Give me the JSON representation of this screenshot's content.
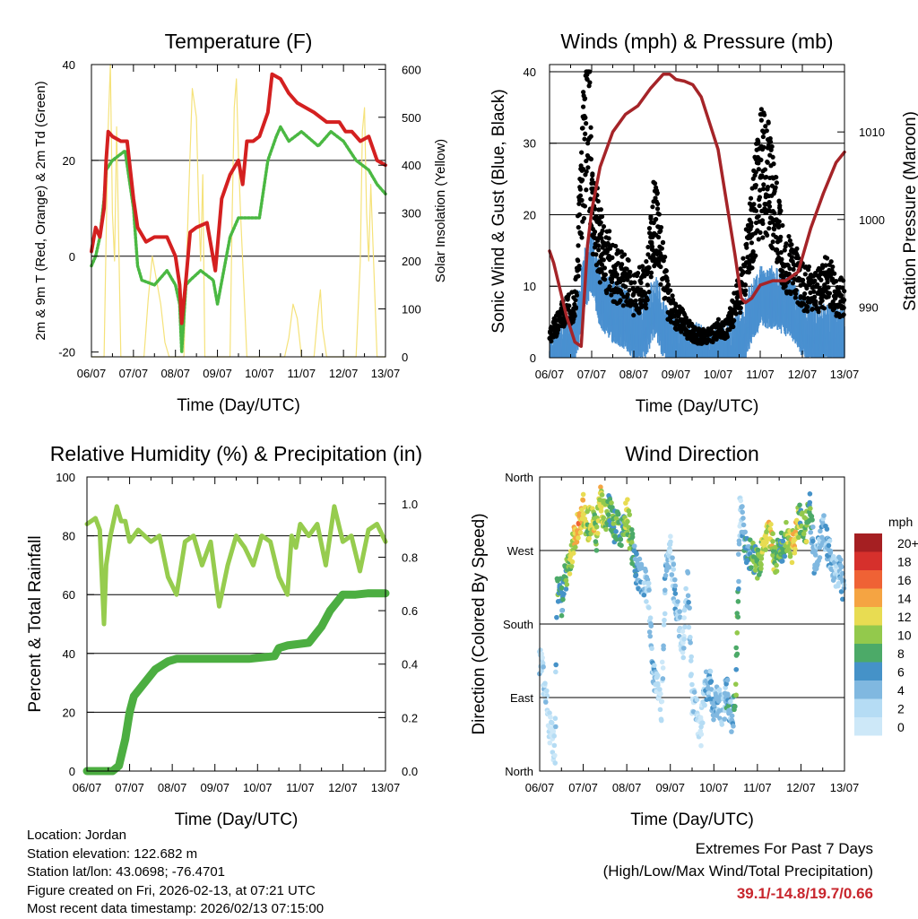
{
  "chart_data": [
    {
      "type": "line",
      "title": "Temperature (F)",
      "xlabel": "Time (Day/UTC)",
      "ylabel": "2m & 9m T (Red, Orange) & 2m Td (Green)",
      "y2label": "Solar Insolation (Yellow)",
      "x_ticks": [
        "06/07",
        "07/07",
        "08/07",
        "09/07",
        "10/07",
        "11/07",
        "12/07",
        "13/07"
      ],
      "xlim": [
        0,
        7
      ],
      "ylim": [
        -21,
        40
      ],
      "y_ticks": [
        -20,
        0,
        20,
        40
      ],
      "y2lim": [
        0,
        610
      ],
      "y2_ticks": [
        0,
        100,
        200,
        300,
        400,
        500,
        600
      ],
      "grid_y": [
        0,
        20,
        40
      ],
      "series": [
        {
          "name": "2m T",
          "color": "#d42020",
          "x": [
            0,
            0.1,
            0.2,
            0.3,
            0.35,
            0.4,
            0.5,
            0.7,
            0.85,
            1.0,
            1.1,
            1.3,
            1.5,
            1.8,
            2.0,
            2.1,
            2.15,
            2.25,
            2.35,
            2.5,
            2.75,
            2.95,
            3.0,
            3.1,
            3.3,
            3.5,
            3.6,
            3.7,
            3.85,
            4.0,
            4.2,
            4.3,
            4.5,
            4.7,
            4.9,
            5.3,
            5.6,
            5.9,
            6.05,
            6.2,
            6.4,
            6.6,
            6.8,
            7.0
          ],
          "values": [
            1,
            6,
            4,
            10,
            20,
            26,
            25,
            24,
            24,
            12,
            6,
            3,
            4,
            4,
            0,
            -6,
            -14,
            -5,
            5,
            6,
            7,
            -3,
            2,
            12,
            17,
            20,
            15,
            24,
            24,
            25,
            30,
            38,
            37,
            34,
            32,
            30,
            28,
            28,
            26,
            26,
            24,
            25,
            20,
            19
          ]
        },
        {
          "name": "2m Td",
          "color": "#4ab842",
          "x": [
            0,
            0.1,
            0.2,
            0.3,
            0.35,
            0.5,
            0.8,
            1.0,
            1.1,
            1.2,
            1.5,
            1.8,
            2.0,
            2.1,
            2.15,
            2.25,
            2.35,
            2.6,
            2.9,
            3.0,
            3.3,
            3.5,
            3.7,
            4.0,
            4.2,
            4.4,
            4.5,
            4.7,
            5.0,
            5.4,
            5.7,
            6.0,
            6.3,
            6.6,
            6.8,
            7.0
          ],
          "values": [
            -2,
            0,
            4,
            12,
            18,
            20,
            22,
            10,
            -2,
            -5,
            -6,
            -3,
            -6,
            -10,
            -20,
            -6,
            -5,
            -3,
            -5,
            -10,
            4,
            8,
            8,
            8,
            20,
            25,
            27,
            24,
            26,
            23,
            26,
            24,
            20,
            18,
            15,
            13
          ]
        },
        {
          "name": "Solar Insolation",
          "color": "#f5e27a",
          "axis": "y2",
          "x": [
            0,
            0.3,
            0.35,
            0.4,
            0.45,
            0.5,
            0.55,
            0.6,
            0.7,
            1.25,
            1.35,
            1.45,
            1.55,
            1.65,
            1.75,
            1.85,
            2.2,
            2.3,
            2.4,
            2.5,
            2.55,
            2.6,
            2.65,
            2.7,
            3.3,
            3.35,
            3.4,
            3.45,
            3.5,
            3.55,
            3.6,
            3.7,
            4.6,
            4.7,
            4.8,
            4.9,
            5.0,
            5.3,
            5.4,
            5.45,
            5.5,
            5.6,
            6.3,
            6.4,
            6.45,
            6.5,
            6.55,
            6.6,
            6.65,
            6.8,
            7.0
          ],
          "values": [
            0,
            0,
            250,
            480,
            610,
            300,
            200,
            480,
            0,
            0,
            120,
            210,
            160,
            110,
            30,
            0,
            0,
            300,
            560,
            500,
            320,
            200,
            380,
            0,
            0,
            300,
            520,
            580,
            420,
            300,
            200,
            0,
            0,
            40,
            110,
            80,
            0,
            0,
            100,
            140,
            60,
            0,
            0,
            200,
            470,
            520,
            300,
            200,
            360,
            0,
            0
          ]
        }
      ]
    },
    {
      "type": "scatter",
      "title": "Winds (mph) & Pressure (mb)",
      "xlabel": "Time (Day/UTC)",
      "ylabel": "Sonic Wind & Gust (Blue, Black)",
      "y2label": "Station Pressure (Maroon)",
      "x_ticks": [
        "06/07",
        "07/07",
        "08/07",
        "09/07",
        "10/07",
        "11/07",
        "12/07",
        "13/07"
      ],
      "xlim": [
        0,
        7
      ],
      "ylim": [
        0,
        41
      ],
      "y_ticks": [
        0,
        10,
        20,
        30,
        40
      ],
      "y2lim": [
        984.2,
        1017.7
      ],
      "y2_ticks": [
        990,
        1000,
        1010
      ],
      "grid_y": [
        10,
        20,
        30,
        40
      ],
      "series": [
        {
          "name": "Sonic Wind",
          "color": "#4a90d0",
          "x": [
            0,
            0.3,
            0.6,
            0.8,
            1.0,
            1.2,
            1.5,
            1.8,
            2.0,
            2.3,
            2.5,
            2.8,
            3.0,
            3.3,
            3.5,
            3.8,
            4.0,
            4.2,
            4.4,
            4.6,
            4.8,
            5.0,
            5.3,
            5.6,
            5.8,
            6.0,
            6.3,
            6.6,
            6.8,
            7.0
          ],
          "values": [
            1,
            3,
            4,
            12,
            15,
            10,
            8,
            7,
            5,
            6,
            9,
            4,
            3,
            2,
            2,
            1,
            2,
            2,
            3,
            5,
            8,
            10,
            10,
            9,
            8,
            6,
            5,
            5,
            4,
            4
          ]
        },
        {
          "name": "Gust",
          "color": "#000000",
          "x": [
            0,
            0.3,
            0.6,
            0.8,
            0.9,
            1.0,
            1.2,
            1.5,
            1.8,
            2.0,
            2.3,
            2.5,
            2.8,
            3.0,
            3.3,
            3.5,
            3.8,
            4.0,
            4.2,
            4.4,
            4.6,
            4.8,
            5.0,
            5.2,
            5.4,
            5.6,
            5.8,
            6.0,
            6.3,
            6.6,
            6.8,
            7.0
          ],
          "values": [
            3,
            6,
            8,
            28,
            39,
            22,
            16,
            12,
            11,
            9,
            10,
            20,
            8,
            6,
            4,
            3,
            3,
            4,
            4,
            7,
            11,
            18,
            26,
            25,
            18,
            13,
            12,
            10,
            9,
            11,
            9,
            8
          ]
        },
        {
          "name": "Station Pressure",
          "color": "#a52428",
          "axis": "y2",
          "x": [
            0,
            0.1,
            0.2,
            0.4,
            0.6,
            0.75,
            0.9,
            1.0,
            1.2,
            1.5,
            1.8,
            2.1,
            2.4,
            2.7,
            2.85,
            3.0,
            3.2,
            3.4,
            3.6,
            3.8,
            4.0,
            4.2,
            4.4,
            4.55,
            4.65,
            4.8,
            5.0,
            5.3,
            5.6,
            5.9,
            6.2,
            6.5,
            6.8,
            7.0
          ],
          "values": [
            996.4,
            995,
            993,
            989,
            986,
            985.5,
            997,
            1001,
            1006,
            1010,
            1012,
            1013,
            1015,
            1016.6,
            1016.6,
            1016,
            1015.8,
            1015.4,
            1014,
            1011,
            1008,
            1002,
            996,
            991,
            990.5,
            991,
            992.5,
            993,
            993,
            994,
            999,
            1003,
            1006.5,
            1007.7
          ]
        }
      ]
    },
    {
      "type": "line",
      "title": "Relative Humidity (%) & Precipitation (in)",
      "xlabel": "Time (Day/UTC)",
      "ylabel": "Percent & Total Rainfall",
      "x_ticks": [
        "06/07",
        "07/07",
        "08/07",
        "09/07",
        "10/07",
        "11/07",
        "12/07",
        "13/07"
      ],
      "xlim": [
        0,
        7
      ],
      "ylim": [
        0,
        100
      ],
      "y_ticks": [
        0,
        20,
        40,
        60,
        80,
        100
      ],
      "y2lim": [
        0,
        1.1
      ],
      "y2_ticks": [
        0.0,
        0.2,
        0.4,
        0.6,
        0.8,
        1.0
      ],
      "grid_y": [
        20,
        40,
        60,
        80
      ],
      "series": [
        {
          "name": "Relative Humidity",
          "color": "#96cc4e",
          "x": [
            0,
            0.2,
            0.3,
            0.4,
            0.45,
            0.55,
            0.7,
            0.8,
            0.9,
            1.0,
            1.2,
            1.5,
            1.7,
            1.9,
            2.1,
            2.3,
            2.5,
            2.7,
            2.9,
            3.1,
            3.3,
            3.5,
            3.7,
            3.9,
            4.1,
            4.3,
            4.5,
            4.7,
            4.8,
            4.9,
            5.0,
            5.2,
            5.4,
            5.6,
            5.8,
            6.0,
            6.2,
            6.4,
            6.6,
            6.8,
            7.0
          ],
          "values": [
            84,
            86,
            82,
            50,
            70,
            80,
            90,
            85,
            85,
            78,
            82,
            78,
            80,
            66,
            60,
            78,
            80,
            70,
            78,
            56,
            70,
            80,
            76,
            70,
            80,
            78,
            66,
            60,
            80,
            76,
            84,
            80,
            84,
            70,
            90,
            78,
            80,
            68,
            82,
            84,
            78
          ]
        },
        {
          "name": "Total Precipitation",
          "color": "#4cae41",
          "axis": "y2",
          "x": [
            0,
            0.6,
            0.75,
            0.9,
            1.0,
            1.1,
            1.3,
            1.6,
            1.9,
            2.1,
            3.0,
            3.8,
            4.4,
            4.5,
            4.7,
            5.2,
            5.5,
            5.7,
            5.9,
            6.0,
            6.3,
            6.6,
            7.0
          ],
          "values": [
            0,
            0,
            0.02,
            0.12,
            0.22,
            0.28,
            0.32,
            0.38,
            0.41,
            0.42,
            0.42,
            0.42,
            0.43,
            0.46,
            0.47,
            0.48,
            0.54,
            0.6,
            0.64,
            0.66,
            0.66,
            0.665,
            0.665
          ]
        }
      ]
    },
    {
      "type": "scatter",
      "title": "Wind Direction",
      "xlabel": "Time (Day/UTC)",
      "ylabel": "Direction (Colored By Speed)",
      "x_ticks": [
        "06/07",
        "07/07",
        "08/07",
        "09/07",
        "10/07",
        "11/07",
        "12/07",
        "13/07"
      ],
      "xlim": [
        0,
        7
      ],
      "ylim": [
        0,
        360
      ],
      "y_tick_values": [
        0,
        90,
        180,
        270,
        360
      ],
      "y_tick_labels": [
        "North",
        "East",
        "South",
        "West",
        "North"
      ],
      "grid_y": [
        90,
        180,
        270
      ],
      "colorbar": {
        "title": "mph",
        "labels": [
          "20+",
          "18",
          "16",
          "14",
          "12",
          "10",
          "8",
          "6",
          "4",
          "2",
          "0"
        ],
        "colors": [
          "#a51f22",
          "#d6302c",
          "#ef6235",
          "#f5a442",
          "#e8dc52",
          "#93c94c",
          "#4caa68",
          "#4592c8",
          "#80b8e0",
          "#b5dcf4",
          "#cde8f8"
        ]
      },
      "series": [
        {
          "name": "Wind Direction",
          "x": [
            0.05,
            0.1,
            0.15,
            0.2,
            0.3,
            0.35,
            0.4,
            0.5,
            0.6,
            0.7,
            0.8,
            0.9,
            1.0,
            1.1,
            1.2,
            1.3,
            1.4,
            1.5,
            1.6,
            1.7,
            1.8,
            1.9,
            2.0,
            2.1,
            2.2,
            2.3,
            2.4,
            2.5,
            2.6,
            2.7,
            2.8,
            2.9,
            3.0,
            3.1,
            3.2,
            3.3,
            3.4,
            3.5,
            3.6,
            3.7,
            3.8,
            3.9,
            4.0,
            4.1,
            4.2,
            4.3,
            4.4,
            4.5,
            4.55,
            4.6,
            4.7,
            4.8,
            4.9,
            5.0,
            5.1,
            5.2,
            5.3,
            5.4,
            5.5,
            5.6,
            5.7,
            5.8,
            5.9,
            6.0,
            6.1,
            6.2,
            6.3,
            6.4,
            6.5,
            6.6,
            6.7,
            6.8,
            6.9,
            6.95
          ],
          "values": [
            130,
            100,
            90,
            60,
            40,
            20,
            230,
            210,
            240,
            250,
            290,
            300,
            320,
            300,
            310,
            290,
            330,
            310,
            320,
            300,
            300,
            290,
            320,
            280,
            250,
            240,
            230,
            220,
            120,
            100,
            80,
            250,
            270,
            220,
            180,
            150,
            240,
            90,
            70,
            50,
            100,
            110,
            80,
            90,
            70,
            100,
            60,
            90,
            200,
            330,
            280,
            270,
            260,
            250,
            270,
            280,
            290,
            260,
            270,
            280,
            290,
            270,
            300,
            310,
            290,
            330,
            260,
            270,
            300,
            280,
            250,
            240,
            250,
            230
          ],
          "speed": [
            2,
            2,
            1,
            0,
            1,
            1,
            8,
            6,
            8,
            10,
            12,
            14,
            12,
            10,
            12,
            10,
            12,
            10,
            8,
            8,
            8,
            6,
            12,
            8,
            6,
            4,
            4,
            2,
            4,
            2,
            2,
            4,
            1,
            4,
            2,
            2,
            4,
            2,
            2,
            1,
            4,
            4,
            4,
            4,
            2,
            6,
            4,
            8,
            8,
            1,
            6,
            6,
            8,
            8,
            10,
            12,
            12,
            10,
            8,
            8,
            10,
            12,
            12,
            8,
            10,
            8,
            4,
            4,
            4,
            4,
            4,
            2,
            4,
            4
          ]
        }
      ]
    }
  ],
  "station_info": {
    "location": "Location: Jordan",
    "elevation": "Station elevation: 122.682 m",
    "latlon": "Station lat/lon: 43.0698; -76.4701",
    "created": "Figure created on Fri, 2026-02-13, at 07:21 UTC",
    "recent": "Most recent data timestamp: 2026/02/13 07:15:00"
  },
  "extremes": {
    "line1": "Extremes For Past 7 Days",
    "line2": "(High/Low/Max Wind/Total Precipitation)",
    "values": "39.1/-14.8/19.7/0.66"
  }
}
